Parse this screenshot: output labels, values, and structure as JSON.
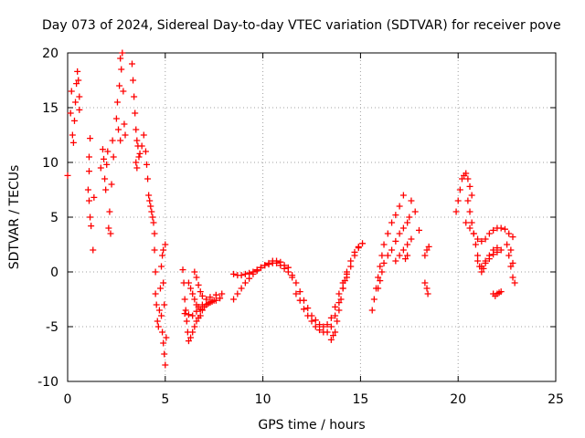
{
  "chart_data": {
    "type": "scatter",
    "title": "Day 073 of 2024, Sidereal Day-to-day VTEC variation (SDTVAR) for receiver pove",
    "xlabel": "GPS time / hours",
    "ylabel": "SDTVAR / TECUs",
    "xlim": [
      0,
      25
    ],
    "ylim": [
      -10,
      20
    ],
    "xticks": [
      0,
      5,
      10,
      15,
      20,
      25
    ],
    "yticks": [
      -10,
      -5,
      0,
      5,
      10,
      15,
      20
    ],
    "xtick_labels": [
      "0",
      "5",
      "10",
      "15",
      "20",
      "25"
    ],
    "ytick_labels": [
      "-10",
      "-5",
      "0",
      "5",
      "10",
      "15",
      "20"
    ],
    "grid": true,
    "marker": "+",
    "color": "#ff0000",
    "series": [
      {
        "name": "SDTVAR",
        "points": [
          [
            0.0,
            8.8
          ],
          [
            0.15,
            14.5
          ],
          [
            0.2,
            16.5
          ],
          [
            0.25,
            12.5
          ],
          [
            0.3,
            11.8
          ],
          [
            0.35,
            13.8
          ],
          [
            0.4,
            15.5
          ],
          [
            0.45,
            17.2
          ],
          [
            0.5,
            18.3
          ],
          [
            0.55,
            17.5
          ],
          [
            0.6,
            16.0
          ],
          [
            0.6,
            14.8
          ],
          [
            1.15,
            12.2
          ],
          [
            1.1,
            10.5
          ],
          [
            1.1,
            9.2
          ],
          [
            1.05,
            7.5
          ],
          [
            1.1,
            6.5
          ],
          [
            1.15,
            5.0
          ],
          [
            1.2,
            4.2
          ],
          [
            1.3,
            2.0
          ],
          [
            1.35,
            6.8
          ],
          [
            1.7,
            9.5
          ],
          [
            1.8,
            11.2
          ],
          [
            1.85,
            10.3
          ],
          [
            1.9,
            8.5
          ],
          [
            1.95,
            7.5
          ],
          [
            2.0,
            9.8
          ],
          [
            2.05,
            11.0
          ],
          [
            2.1,
            4.0
          ],
          [
            2.15,
            5.5
          ],
          [
            2.2,
            3.5
          ],
          [
            2.25,
            8.0
          ],
          [
            2.3,
            12.0
          ],
          [
            2.35,
            10.5
          ],
          [
            2.5,
            14.0
          ],
          [
            2.55,
            15.5
          ],
          [
            2.6,
            13.0
          ],
          [
            2.65,
            17.0
          ],
          [
            2.7,
            19.5
          ],
          [
            2.75,
            18.5
          ],
          [
            2.8,
            20.0
          ],
          [
            2.85,
            16.5
          ],
          [
            2.9,
            13.5
          ],
          [
            2.95,
            12.5
          ],
          [
            2.7,
            12.0
          ],
          [
            3.3,
            19.0
          ],
          [
            3.35,
            17.5
          ],
          [
            3.4,
            16.0
          ],
          [
            3.45,
            14.5
          ],
          [
            3.5,
            13.0
          ],
          [
            3.55,
            12.0
          ],
          [
            3.6,
            11.5
          ],
          [
            3.65,
            10.5
          ],
          [
            3.5,
            10.0
          ],
          [
            3.55,
            9.5
          ],
          [
            3.7,
            10.8
          ],
          [
            3.8,
            11.5
          ],
          [
            3.9,
            12.5
          ],
          [
            4.0,
            11.0
          ],
          [
            4.05,
            9.8
          ],
          [
            4.1,
            8.5
          ],
          [
            4.15,
            7.0
          ],
          [
            4.2,
            6.5
          ],
          [
            4.25,
            6.0
          ],
          [
            4.3,
            5.5
          ],
          [
            4.35,
            5.0
          ],
          [
            4.4,
            4.5
          ],
          [
            4.45,
            3.5
          ],
          [
            4.45,
            2.0
          ],
          [
            4.5,
            0.0
          ],
          [
            4.5,
            -2.0
          ],
          [
            4.55,
            -3.0
          ],
          [
            4.6,
            -4.5
          ],
          [
            4.65,
            -5.0
          ],
          [
            4.7,
            -3.5
          ],
          [
            4.75,
            -1.5
          ],
          [
            4.8,
            0.5
          ],
          [
            4.85,
            1.5
          ],
          [
            4.9,
            2.0
          ],
          [
            5.0,
            2.5
          ],
          [
            4.8,
            -4.0
          ],
          [
            4.85,
            -5.5
          ],
          [
            4.9,
            -6.5
          ],
          [
            4.95,
            -7.5
          ],
          [
            5.0,
            -8.5
          ],
          [
            5.05,
            -6.0
          ],
          [
            4.95,
            -3.0
          ],
          [
            4.9,
            -1.0
          ],
          [
            5.9,
            0.2
          ],
          [
            5.95,
            -1.0
          ],
          [
            6.0,
            -2.5
          ],
          [
            6.05,
            -3.5
          ],
          [
            6.1,
            -4.5
          ],
          [
            6.15,
            -5.5
          ],
          [
            6.2,
            -6.3
          ],
          [
            6.3,
            -6.0
          ],
          [
            6.4,
            -5.5
          ],
          [
            6.5,
            -5.0
          ],
          [
            6.6,
            -4.5
          ],
          [
            6.7,
            -4.2
          ],
          [
            6.8,
            -4.0
          ],
          [
            6.9,
            -3.5
          ],
          [
            7.0,
            -3.2
          ],
          [
            7.1,
            -3.0
          ],
          [
            7.3,
            -2.8
          ],
          [
            7.5,
            -2.6
          ],
          [
            7.8,
            -2.4
          ],
          [
            6.2,
            -1.0
          ],
          [
            6.3,
            -1.5
          ],
          [
            6.4,
            -2.0
          ],
          [
            6.5,
            -2.5
          ],
          [
            6.6,
            -3.0
          ],
          [
            6.7,
            -3.2
          ],
          [
            6.9,
            -3.0
          ],
          [
            7.1,
            -2.5
          ],
          [
            7.3,
            -2.3
          ],
          [
            7.6,
            -2.1
          ],
          [
            7.9,
            -2.0
          ],
          [
            6.0,
            -3.8
          ],
          [
            6.2,
            -3.9
          ],
          [
            6.4,
            -4.0
          ],
          [
            6.6,
            -3.6
          ],
          [
            6.8,
            -3.4
          ],
          [
            7.0,
            -3.2
          ],
          [
            7.2,
            -2.9
          ],
          [
            7.4,
            -2.7
          ],
          [
            7.6,
            -2.6
          ],
          [
            6.5,
            0.0
          ],
          [
            6.6,
            -0.5
          ],
          [
            6.7,
            -1.2
          ],
          [
            6.8,
            -1.8
          ],
          [
            6.9,
            -2.2
          ],
          [
            8.5,
            -2.5
          ],
          [
            8.7,
            -2.0
          ],
          [
            8.9,
            -1.5
          ],
          [
            9.1,
            -1.0
          ],
          [
            9.3,
            -0.6
          ],
          [
            9.5,
            -0.2
          ],
          [
            9.7,
            0.1
          ],
          [
            9.9,
            0.4
          ],
          [
            10.1,
            0.6
          ],
          [
            10.3,
            0.7
          ],
          [
            10.5,
            0.8
          ],
          [
            10.7,
            0.8
          ],
          [
            10.9,
            0.6
          ],
          [
            11.1,
            0.3
          ],
          [
            11.3,
            0.0
          ],
          [
            11.5,
            -0.3
          ],
          [
            8.5,
            -0.2
          ],
          [
            8.7,
            -0.3
          ],
          [
            8.9,
            -0.3
          ],
          [
            9.1,
            -0.2
          ],
          [
            9.3,
            -0.1
          ],
          [
            9.5,
            0.0
          ],
          [
            9.7,
            0.2
          ],
          [
            9.9,
            0.4
          ],
          [
            10.1,
            0.6
          ],
          [
            10.3,
            0.8
          ],
          [
            10.5,
            1.0
          ],
          [
            10.7,
            1.0
          ],
          [
            10.9,
            0.9
          ],
          [
            11.1,
            0.6
          ],
          [
            11.3,
            0.4
          ],
          [
            11.5,
            -0.5
          ],
          [
            11.7,
            -1.0
          ],
          [
            11.9,
            -1.8
          ],
          [
            12.1,
            -2.6
          ],
          [
            12.3,
            -3.3
          ],
          [
            12.5,
            -4.0
          ],
          [
            12.7,
            -4.4
          ],
          [
            12.9,
            -4.8
          ],
          [
            13.1,
            -5.0
          ],
          [
            13.3,
            -4.8
          ],
          [
            13.5,
            -4.2
          ],
          [
            13.7,
            -3.2
          ],
          [
            13.9,
            -2.0
          ],
          [
            14.1,
            -1.0
          ],
          [
            14.3,
            0.0
          ],
          [
            14.5,
            1.0
          ],
          [
            14.7,
            1.8
          ],
          [
            14.9,
            2.3
          ],
          [
            15.1,
            2.6
          ],
          [
            11.7,
            -2.0
          ],
          [
            11.9,
            -2.6
          ],
          [
            12.1,
            -3.4
          ],
          [
            12.3,
            -4.0
          ],
          [
            12.5,
            -4.5
          ],
          [
            12.7,
            -5.0
          ],
          [
            12.9,
            -5.3
          ],
          [
            13.1,
            -5.5
          ],
          [
            13.3,
            -5.5
          ],
          [
            13.5,
            -5.0
          ],
          [
            13.7,
            -4.0
          ],
          [
            13.9,
            -2.8
          ],
          [
            14.1,
            -1.5
          ],
          [
            14.3,
            -0.5
          ],
          [
            14.5,
            0.5
          ],
          [
            14.7,
            1.5
          ],
          [
            14.9,
            2.2
          ],
          [
            13.5,
            -6.2
          ],
          [
            13.6,
            -5.8
          ],
          [
            13.7,
            -5.5
          ],
          [
            13.8,
            -4.5
          ],
          [
            13.9,
            -3.5
          ],
          [
            14.0,
            -2.5
          ],
          [
            14.1,
            -1.5
          ],
          [
            14.2,
            -0.8
          ],
          [
            14.3,
            -0.2
          ],
          [
            15.6,
            -3.5
          ],
          [
            15.7,
            -2.5
          ],
          [
            15.8,
            -1.5
          ],
          [
            15.9,
            -0.5
          ],
          [
            16.0,
            0.5
          ],
          [
            16.1,
            1.5
          ],
          [
            16.2,
            2.5
          ],
          [
            16.4,
            3.5
          ],
          [
            16.6,
            4.5
          ],
          [
            16.8,
            5.2
          ],
          [
            17.0,
            6.0
          ],
          [
            17.2,
            7.0
          ],
          [
            15.9,
            -1.5
          ],
          [
            16.0,
            -0.8
          ],
          [
            16.1,
            0.0
          ],
          [
            16.2,
            0.8
          ],
          [
            16.4,
            1.5
          ],
          [
            16.6,
            2.0
          ],
          [
            16.8,
            2.8
          ],
          [
            17.0,
            3.5
          ],
          [
            17.2,
            4.0
          ],
          [
            17.4,
            4.5
          ],
          [
            17.5,
            5.0
          ],
          [
            16.8,
            1.0
          ],
          [
            17.0,
            1.5
          ],
          [
            17.2,
            2.0
          ],
          [
            17.4,
            2.5
          ],
          [
            17.6,
            3.0
          ],
          [
            17.3,
            1.2
          ],
          [
            17.4,
            1.5
          ],
          [
            17.6,
            6.5
          ],
          [
            17.8,
            5.5
          ],
          [
            18.0,
            3.8
          ],
          [
            18.3,
            1.5
          ],
          [
            18.4,
            2.0
          ],
          [
            18.5,
            2.3
          ],
          [
            18.3,
            -1.0
          ],
          [
            18.4,
            -1.5
          ],
          [
            18.45,
            -2.0
          ],
          [
            19.9,
            5.5
          ],
          [
            20.0,
            6.5
          ],
          [
            20.1,
            7.5
          ],
          [
            20.2,
            8.5
          ],
          [
            20.3,
            8.8
          ],
          [
            20.4,
            9.0
          ],
          [
            20.5,
            8.5
          ],
          [
            20.6,
            7.8
          ],
          [
            20.7,
            7.0
          ],
          [
            20.5,
            6.5
          ],
          [
            20.6,
            5.5
          ],
          [
            20.7,
            4.5
          ],
          [
            20.8,
            3.5
          ],
          [
            20.9,
            2.5
          ],
          [
            21.0,
            1.5
          ],
          [
            21.1,
            0.5
          ],
          [
            21.2,
            0.0
          ],
          [
            21.3,
            0.3
          ],
          [
            21.4,
            1.0
          ],
          [
            21.6,
            1.5
          ],
          [
            21.8,
            2.0
          ],
          [
            22.0,
            2.2
          ],
          [
            22.2,
            2.0
          ],
          [
            20.4,
            4.5
          ],
          [
            20.6,
            4.0
          ],
          [
            20.8,
            3.5
          ],
          [
            21.0,
            3.0
          ],
          [
            21.2,
            2.8
          ],
          [
            21.4,
            3.0
          ],
          [
            21.6,
            3.5
          ],
          [
            21.8,
            3.8
          ],
          [
            22.0,
            4.0
          ],
          [
            22.2,
            4.0
          ],
          [
            22.4,
            3.9
          ],
          [
            22.6,
            3.5
          ],
          [
            22.8,
            3.2
          ],
          [
            21.0,
            1.0
          ],
          [
            21.2,
            0.5
          ],
          [
            21.4,
            0.8
          ],
          [
            21.6,
            1.2
          ],
          [
            21.8,
            1.6
          ],
          [
            22.0,
            1.8
          ],
          [
            21.8,
            -2.0
          ],
          [
            21.9,
            -2.2
          ],
          [
            22.0,
            -2.0
          ],
          [
            22.1,
            -1.9
          ],
          [
            22.2,
            -1.8
          ],
          [
            22.5,
            2.5
          ],
          [
            22.6,
            1.5
          ],
          [
            22.7,
            0.5
          ],
          [
            22.8,
            -0.5
          ],
          [
            22.9,
            -1.0
          ],
          [
            22.8,
            0.8
          ],
          [
            22.7,
            2.0
          ]
        ]
      }
    ]
  }
}
